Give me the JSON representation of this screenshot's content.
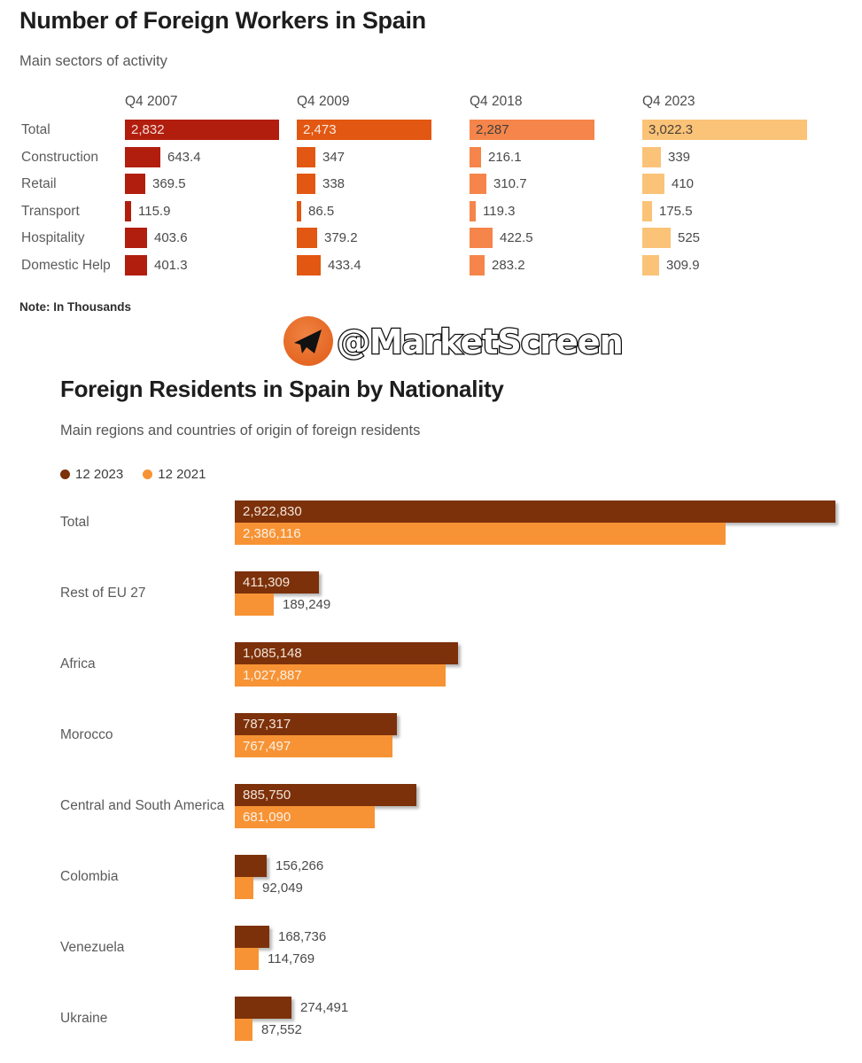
{
  "watermark": {
    "handle": "@MarketScreen",
    "icon": "telegram-plane-icon",
    "icon_color_outer": "#e2611c",
    "icon_color_inner": "#f08343"
  },
  "chart_data": [
    {
      "type": "bar",
      "orientation": "horizontal",
      "title": "Number of Foreign Workers in Spain",
      "subtitle": "Main sectors of activity",
      "note": "Note: In Thousands",
      "unit": "thousands",
      "grid": false,
      "categories": [
        "Total",
        "Construction",
        "Retail",
        "Transport",
        "Hospitality",
        "Domestic Help"
      ],
      "series": [
        {
          "name": "Q4 2007",
          "color": "#b21e0e",
          "inside_label_color": "#f1ddd9",
          "values": [
            2832,
            643.4,
            369.5,
            115.9,
            403.6,
            401.3
          ],
          "labels": [
            "2,832",
            "643.4",
            "369.5",
            "115.9",
            "403.6",
            "401.3"
          ]
        },
        {
          "name": "Q4 2009",
          "color": "#e25711",
          "inside_label_color": "#fbe9de",
          "values": [
            2473,
            347,
            338,
            86.5,
            379.2,
            433.4
          ],
          "labels": [
            "2,473",
            "347",
            "338",
            "86.5",
            "379.2",
            "433.4"
          ]
        },
        {
          "name": "Q4 2018",
          "color": "#f5854a",
          "inside_label_color": "#3e3e3e",
          "values": [
            2287,
            216.1,
            310.7,
            119.3,
            422.5,
            283.2
          ],
          "labels": [
            "2,287",
            "216.1",
            "310.7",
            "119.3",
            "422.5",
            "283.2"
          ]
        },
        {
          "name": "Q4 2023",
          "color": "#fbc378",
          "inside_label_color": "#474139",
          "values": [
            3022.3,
            339,
            410,
            175.5,
            525,
            309.9
          ],
          "labels": [
            "3,022.3",
            "339",
            "410",
            "175.5",
            "525",
            "309.9"
          ]
        }
      ],
      "outside_label_color": "#4a4a4a"
    },
    {
      "type": "bar",
      "orientation": "horizontal",
      "title": "Foreign Residents in Spain by Nationality",
      "subtitle": "Main regions and countries of origin of foreign residents",
      "grid": false,
      "legend_position": "top-left",
      "categories": [
        "Total",
        "Rest of EU 27",
        "Africa",
        "Morocco",
        "Central and South America",
        "Colombia",
        "Venezuela",
        "Ukraine"
      ],
      "series": [
        {
          "name": "12 2023",
          "color": "#7c310a",
          "inside_label_color": "#f3e4da",
          "values": [
            2922830,
            411309,
            1085148,
            787317,
            885750,
            156266,
            168736,
            274491
          ],
          "labels": [
            "2,922,830",
            "411,309",
            "1,085,148",
            "787,317",
            "885,750",
            "156,266",
            "168,736",
            "274,491"
          ]
        },
        {
          "name": "12 2021",
          "color": "#f79334",
          "inside_label_color": "#fdf1e6",
          "values": [
            2386116,
            189249,
            1027887,
            767497,
            681090,
            92049,
            114769,
            87552
          ],
          "labels": [
            "2,386,116",
            "189,249",
            "1,027,887",
            "767,497",
            "681,090",
            "92,049",
            "114,769",
            "87,552"
          ]
        }
      ],
      "outside_label_color": "#4a4a4a"
    }
  ]
}
